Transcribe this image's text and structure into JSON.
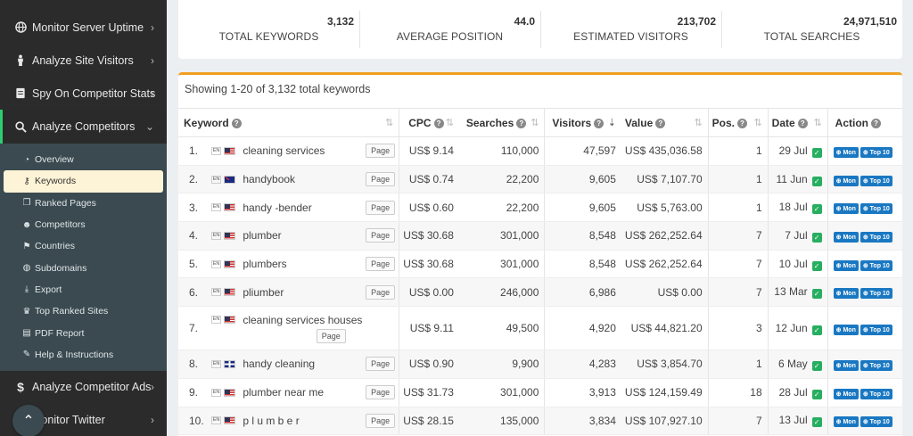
{
  "sidebar": {
    "main_items": [
      {
        "label": "Monitor Server Uptime",
        "icon": "globe-icon"
      },
      {
        "label": "Analyze Site Visitors",
        "icon": "person-icon"
      },
      {
        "label": "Spy On Competitor Stats",
        "icon": "server-icon"
      },
      {
        "label": "Analyze Competitors",
        "icon": "search-icon"
      }
    ],
    "sub_items": [
      {
        "label": "Overview",
        "icon": "dashboard-icon"
      },
      {
        "label": "Keywords",
        "icon": "key-icon"
      },
      {
        "label": "Ranked Pages",
        "icon": "pages-icon"
      },
      {
        "label": "Competitors",
        "icon": "users-icon"
      },
      {
        "label": "Countries",
        "icon": "flag-icon"
      },
      {
        "label": "Subdomains",
        "icon": "globe-icon"
      },
      {
        "label": "Export",
        "icon": "download-icon"
      },
      {
        "label": "Top Ranked Sites",
        "icon": "trophy-icon"
      },
      {
        "label": "PDF Report",
        "icon": "pdf-icon"
      },
      {
        "label": "Help & Instructions",
        "icon": "lightbulb-icon"
      }
    ],
    "bottom_items": [
      {
        "label": "Analyze Competitor Ads",
        "icon": "dollar-icon"
      },
      {
        "label": "Monitor Twitter",
        "icon": "twitter-icon"
      }
    ]
  },
  "stats": [
    {
      "value": "3,132",
      "label": "TOTAL KEYWORDS"
    },
    {
      "value": "44.0",
      "label": "AVERAGE POSITION"
    },
    {
      "value": "213,702",
      "label": "ESTIMATED VISITORS"
    },
    {
      "value": "24,971,510",
      "label": "TOTAL SEARCHES"
    }
  ],
  "table": {
    "showing": "Showing 1-20 of 3,132 total keywords",
    "headers": {
      "keyword": "Keyword",
      "cpc": "CPC",
      "searches": "Searches",
      "visitors": "Visitors",
      "value": "Value",
      "pos": "Pos.",
      "date": "Date",
      "action": "Action"
    },
    "page_label": "Page",
    "mon_label": "Mon",
    "top10_label": "Top 10",
    "lang": "EN",
    "rows": [
      {
        "idx": "1.",
        "flag": "us",
        "keyword": "cleaning services",
        "cpc": "US$ 9.14",
        "searches": "110,000",
        "visitors": "47,597",
        "value": "US$ 435,036.58",
        "pos": "1",
        "date": "29 Jul"
      },
      {
        "idx": "2.",
        "flag": "au",
        "keyword": "handybook",
        "cpc": "US$ 0.74",
        "searches": "22,200",
        "visitors": "9,605",
        "value": "US$ 7,107.70",
        "pos": "1",
        "date": "11 Jun"
      },
      {
        "idx": "3.",
        "flag": "us",
        "keyword": "handy -bender",
        "cpc": "US$ 0.60",
        "searches": "22,200",
        "visitors": "9,605",
        "value": "US$ 5,763.00",
        "pos": "1",
        "date": "18 Jul"
      },
      {
        "idx": "4.",
        "flag": "us",
        "keyword": "plumber",
        "cpc": "US$ 30.68",
        "searches": "301,000",
        "visitors": "8,548",
        "value": "US$ 262,252.64",
        "pos": "7",
        "date": "7 Jul"
      },
      {
        "idx": "5.",
        "flag": "us",
        "keyword": "plumbers",
        "cpc": "US$ 30.68",
        "searches": "301,000",
        "visitors": "8,548",
        "value": "US$ 262,252.64",
        "pos": "7",
        "date": "10 Jul"
      },
      {
        "idx": "6.",
        "flag": "us",
        "keyword": "pliumber",
        "cpc": "US$ 0.00",
        "searches": "246,000",
        "visitors": "6,986",
        "value": "US$ 0.00",
        "pos": "7",
        "date": "13 Mar"
      },
      {
        "idx": "7.",
        "flag": "us",
        "keyword": "cleaning services houses",
        "cpc": "US$ 9.11",
        "searches": "49,500",
        "visitors": "4,920",
        "value": "US$ 44,821.20",
        "pos": "3",
        "date": "12 Jun"
      },
      {
        "idx": "8.",
        "flag": "gb",
        "keyword": "handy cleaning",
        "cpc": "US$ 0.90",
        "searches": "9,900",
        "visitors": "4,283",
        "value": "US$ 3,854.70",
        "pos": "1",
        "date": "6 May"
      },
      {
        "idx": "9.",
        "flag": "us",
        "keyword": "plumber near me",
        "cpc": "US$ 31.73",
        "searches": "301,000",
        "visitors": "3,913",
        "value": "US$ 124,159.49",
        "pos": "18",
        "date": "28 Jul"
      },
      {
        "idx": "10.",
        "flag": "us",
        "keyword": "p l u m b e r",
        "cpc": "US$ 28.15",
        "searches": "135,000",
        "visitors": "3,834",
        "value": "US$ 107,927.10",
        "pos": "7",
        "date": "13 Jul"
      }
    ]
  }
}
